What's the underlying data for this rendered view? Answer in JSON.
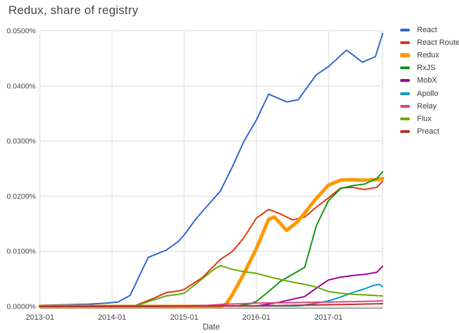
{
  "title": "Redux, share of registry",
  "chart_data": {
    "type": "line",
    "title": "Redux, share of registry",
    "xlabel": "Date",
    "ylabel": "",
    "grid": true,
    "legend_position": "right",
    "xlim": [
      2013.0,
      2017.75
    ],
    "ylim": [
      0,
      0.05
    ],
    "x_ticks": [
      {
        "v": 2013.0,
        "label": "2013-01"
      },
      {
        "v": 2014.0,
        "label": "2014-01"
      },
      {
        "v": 2015.0,
        "label": "2015-01"
      },
      {
        "v": 2016.0,
        "label": "2016-01"
      },
      {
        "v": 2017.0,
        "label": "2017-01"
      }
    ],
    "y_ticks": [
      {
        "v": 0.0,
        "label": "0.0000%"
      },
      {
        "v": 0.01,
        "label": "0.0100%"
      },
      {
        "v": 0.02,
        "label": "0.0200%"
      },
      {
        "v": 0.03,
        "label": "0.0300%"
      },
      {
        "v": 0.04,
        "label": "0.0400%"
      },
      {
        "v": 0.05,
        "label": "0.0500%"
      }
    ],
    "grid_color": "#e3e3e3",
    "axisline_color": "#8a8a8a",
    "tick_color": "#444444",
    "series": [
      {
        "name": "React",
        "color": "#3366CC",
        "width": 2,
        "points": [
          [
            2013.0,
            0.0002
          ],
          [
            2013.33,
            0.0003
          ],
          [
            2013.67,
            0.0004
          ],
          [
            2013.92,
            0.0006
          ],
          [
            2014.08,
            0.0008
          ],
          [
            2014.25,
            0.002
          ],
          [
            2014.5,
            0.0089
          ],
          [
            2014.75,
            0.0102
          ],
          [
            2014.92,
            0.0118
          ],
          [
            2015.0,
            0.013
          ],
          [
            2015.17,
            0.016
          ],
          [
            2015.33,
            0.0184
          ],
          [
            2015.5,
            0.0209
          ],
          [
            2015.67,
            0.0254
          ],
          [
            2015.83,
            0.03
          ],
          [
            2016.0,
            0.0338
          ],
          [
            2016.17,
            0.0385
          ],
          [
            2016.42,
            0.0371
          ],
          [
            2016.58,
            0.0375
          ],
          [
            2016.83,
            0.042
          ],
          [
            2017.0,
            0.0435
          ],
          [
            2017.25,
            0.0465
          ],
          [
            2017.47,
            0.0443
          ],
          [
            2017.65,
            0.0453
          ],
          [
            2017.75,
            0.0495
          ]
        ]
      },
      {
        "name": "React Router",
        "color": "#DC3912",
        "width": 2,
        "points": [
          [
            2013.0,
            0.0001
          ],
          [
            2014.33,
            0.0002
          ],
          [
            2014.58,
            0.0015
          ],
          [
            2014.75,
            0.0025
          ],
          [
            2014.92,
            0.0028
          ],
          [
            2015.0,
            0.0031
          ],
          [
            2015.25,
            0.0052
          ],
          [
            2015.5,
            0.0085
          ],
          [
            2015.67,
            0.01
          ],
          [
            2015.83,
            0.0125
          ],
          [
            2016.0,
            0.016
          ],
          [
            2016.17,
            0.0176
          ],
          [
            2016.33,
            0.0168
          ],
          [
            2016.5,
            0.0157
          ],
          [
            2016.67,
            0.0162
          ],
          [
            2016.83,
            0.018
          ],
          [
            2017.0,
            0.0197
          ],
          [
            2017.17,
            0.0215
          ],
          [
            2017.33,
            0.0216
          ],
          [
            2017.5,
            0.0212
          ],
          [
            2017.67,
            0.0216
          ],
          [
            2017.75,
            0.0227
          ]
        ]
      },
      {
        "name": "Redux",
        "color": "#FF9900",
        "width": 5,
        "points": [
          [
            2013.0,
            0.0
          ],
          [
            2015.5,
            0.0
          ],
          [
            2015.58,
            0.0004
          ],
          [
            2015.67,
            0.0022
          ],
          [
            2015.83,
            0.006
          ],
          [
            2016.0,
            0.0105
          ],
          [
            2016.17,
            0.0158
          ],
          [
            2016.25,
            0.0162
          ],
          [
            2016.42,
            0.0138
          ],
          [
            2016.58,
            0.0155
          ],
          [
            2016.83,
            0.0196
          ],
          [
            2017.0,
            0.022
          ],
          [
            2017.17,
            0.0229
          ],
          [
            2017.33,
            0.023
          ],
          [
            2017.5,
            0.0229
          ],
          [
            2017.67,
            0.023
          ],
          [
            2017.75,
            0.0232
          ]
        ]
      },
      {
        "name": "RxJS",
        "color": "#109618",
        "width": 2,
        "points": [
          [
            2013.0,
            0.0
          ],
          [
            2015.75,
            0.0001
          ],
          [
            2015.92,
            0.0005
          ],
          [
            2016.0,
            0.0009
          ],
          [
            2016.17,
            0.0027
          ],
          [
            2016.33,
            0.0045
          ],
          [
            2016.5,
            0.0058
          ],
          [
            2016.67,
            0.0071
          ],
          [
            2016.83,
            0.0146
          ],
          [
            2017.0,
            0.0192
          ],
          [
            2017.17,
            0.0214
          ],
          [
            2017.33,
            0.0219
          ],
          [
            2017.5,
            0.0222
          ],
          [
            2017.67,
            0.0232
          ],
          [
            2017.75,
            0.0244
          ]
        ]
      },
      {
        "name": "MobX",
        "color": "#990099",
        "width": 2,
        "points": [
          [
            2013.0,
            0.0
          ],
          [
            2016.0,
            0.0001
          ],
          [
            2016.17,
            0.0004
          ],
          [
            2016.33,
            0.0008
          ],
          [
            2016.5,
            0.0013
          ],
          [
            2016.67,
            0.0018
          ],
          [
            2016.83,
            0.0033
          ],
          [
            2017.0,
            0.0048
          ],
          [
            2017.17,
            0.0053
          ],
          [
            2017.33,
            0.0056
          ],
          [
            2017.5,
            0.0058
          ],
          [
            2017.67,
            0.0062
          ],
          [
            2017.75,
            0.0073
          ]
        ]
      },
      {
        "name": "Apollo",
        "color": "#0099C6",
        "width": 2,
        "points": [
          [
            2013.0,
            0.0
          ],
          [
            2016.58,
            0.0001
          ],
          [
            2016.75,
            0.0004
          ],
          [
            2016.92,
            0.0008
          ],
          [
            2017.0,
            0.001
          ],
          [
            2017.17,
            0.0017
          ],
          [
            2017.33,
            0.0025
          ],
          [
            2017.5,
            0.0032
          ],
          [
            2017.62,
            0.0038
          ],
          [
            2017.7,
            0.004
          ],
          [
            2017.75,
            0.0036
          ]
        ]
      },
      {
        "name": "Relay",
        "color": "#DD4477",
        "width": 2,
        "points": [
          [
            2013.0,
            0.0001
          ],
          [
            2015.0,
            0.0001
          ],
          [
            2015.33,
            0.0002
          ],
          [
            2015.58,
            0.0004
          ],
          [
            2015.83,
            0.0005
          ],
          [
            2016.0,
            0.0006
          ],
          [
            2016.5,
            0.0007
          ],
          [
            2017.0,
            0.0008
          ],
          [
            2017.5,
            0.0009
          ],
          [
            2017.75,
            0.001
          ]
        ]
      },
      {
        "name": "Flux",
        "color": "#66AA00",
        "width": 2,
        "points": [
          [
            2013.0,
            0.0
          ],
          [
            2014.33,
            0.0001
          ],
          [
            2014.58,
            0.0012
          ],
          [
            2014.75,
            0.0019
          ],
          [
            2014.92,
            0.0022
          ],
          [
            2015.0,
            0.0024
          ],
          [
            2015.25,
            0.005
          ],
          [
            2015.42,
            0.0068
          ],
          [
            2015.5,
            0.0074
          ],
          [
            2015.67,
            0.0067
          ],
          [
            2015.83,
            0.0063
          ],
          [
            2016.0,
            0.006
          ],
          [
            2016.17,
            0.0054
          ],
          [
            2016.33,
            0.0049
          ],
          [
            2016.5,
            0.0044
          ],
          [
            2016.67,
            0.004
          ],
          [
            2016.83,
            0.0035
          ],
          [
            2017.0,
            0.0027
          ],
          [
            2017.17,
            0.0024
          ],
          [
            2017.33,
            0.0022
          ],
          [
            2017.5,
            0.0021
          ],
          [
            2017.75,
            0.0019
          ]
        ]
      },
      {
        "name": "Preact",
        "color": "#B82E2E",
        "width": 2,
        "points": [
          [
            2013.0,
            0.0
          ],
          [
            2016.0,
            0.0001
          ],
          [
            2016.5,
            0.0002
          ],
          [
            2017.0,
            0.0003
          ],
          [
            2017.42,
            0.0004
          ],
          [
            2017.75,
            0.0005
          ]
        ]
      }
    ]
  }
}
